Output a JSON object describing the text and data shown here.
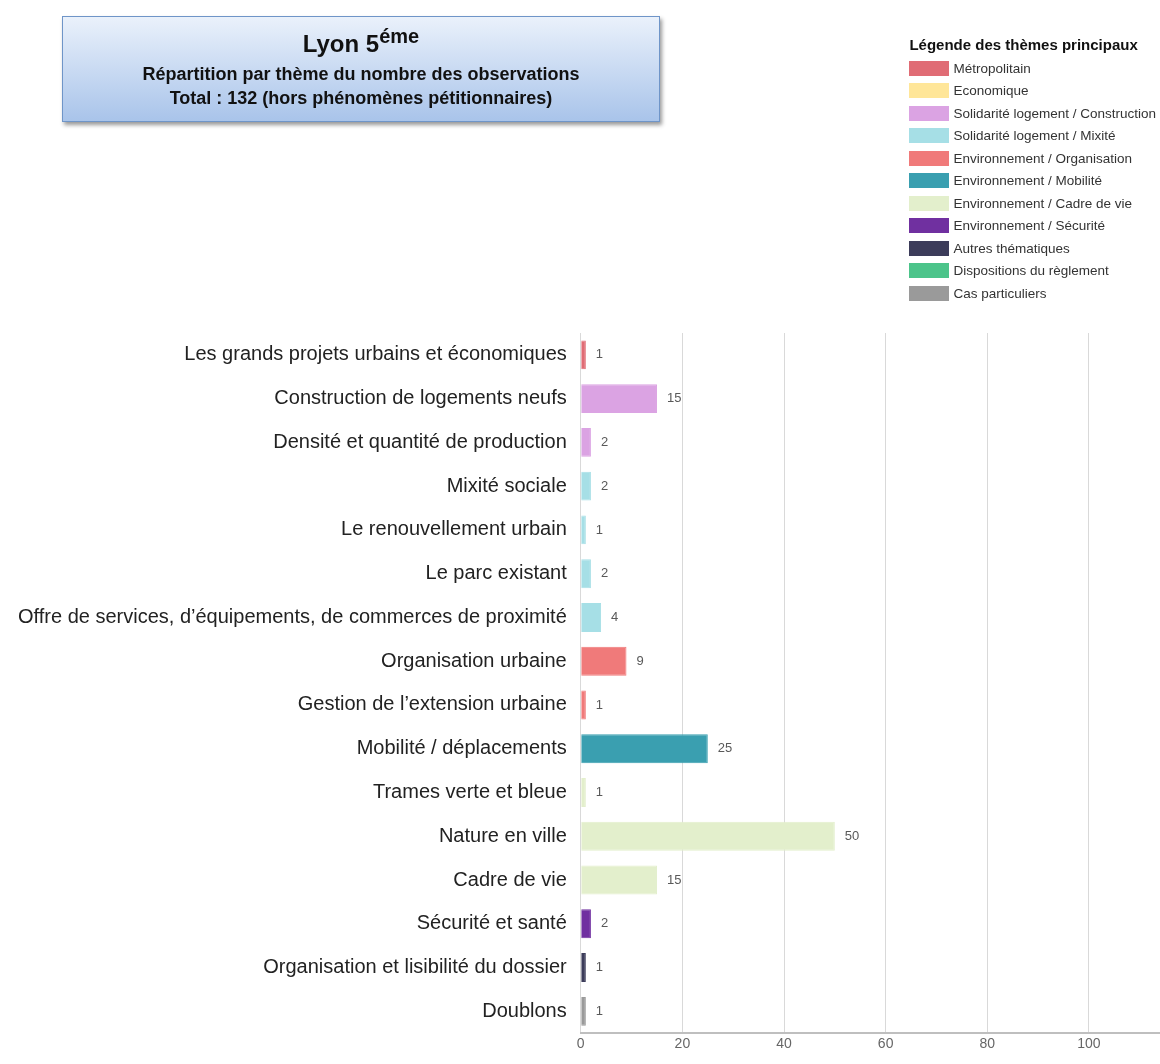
{
  "chart_data": {
    "type": "bar",
    "orientation": "horizontal",
    "stacked": true,
    "title": "Lyon 5$^{éme}$",
    "subtitle": "Répartition par thème du nombre des observations\nTotal : 132 (hors phénomènes pétitionnaires)",
    "legend_title": "Légende des thèmes principaux",
    "categories": [
      "Les grands projets urbains et économiques",
      "Construction de logements neufs",
      "Densité et quantité de production",
      "Mixité sociale",
      "Le renouvellement urbain",
      "Le parc existant",
      "Offre de services, d’équipements, de commerces de proximité",
      "Organisation urbaine",
      "Gestion de l’extension urbaine",
      "Mobilité / déplacements",
      "Trames verte et bleue",
      "Nature en ville",
      "Cadre de vie",
      "Sécurité et santé",
      "Organisation et lisibilité du dossier",
      "Doublons"
    ],
    "series": [
      {
        "name": "Métropolitain",
        "color": "#e06c75",
        "values": [
          1,
          null,
          null,
          null,
          null,
          null,
          null,
          null,
          null,
          null,
          null,
          null,
          null,
          null,
          null,
          null
        ]
      },
      {
        "name": "Economique",
        "color": "#ffe699",
        "values": [
          null,
          null,
          null,
          null,
          null,
          null,
          null,
          null,
          null,
          null,
          null,
          null,
          null,
          null,
          null,
          null
        ]
      },
      {
        "name": "Solidarité logement / Construction",
        "color": "#dba3e3",
        "values": [
          null,
          15,
          2,
          null,
          null,
          null,
          null,
          null,
          null,
          null,
          null,
          null,
          null,
          null,
          null,
          null
        ]
      },
      {
        "name": "Solidarité logement / Mixité",
        "color": "#a6dfe6",
        "values": [
          null,
          null,
          null,
          2,
          1,
          2,
          4,
          null,
          null,
          null,
          null,
          null,
          null,
          null,
          null,
          null
        ]
      },
      {
        "name": "Environnement / Organisation",
        "color": "#f07a7a",
        "values": [
          null,
          null,
          null,
          null,
          null,
          null,
          null,
          9,
          1,
          null,
          null,
          null,
          null,
          null,
          null,
          null
        ]
      },
      {
        "name": "Environnement / Mobilité",
        "color": "#3a9fb0",
        "values": [
          null,
          null,
          null,
          null,
          null,
          null,
          null,
          null,
          null,
          25,
          null,
          null,
          null,
          null,
          null,
          null
        ]
      },
      {
        "name": "Environnement / Cadre de vie",
        "color": "#e3efcc",
        "values": [
          null,
          null,
          null,
          null,
          null,
          null,
          null,
          null,
          null,
          null,
          1,
          50,
          15,
          null,
          null,
          null
        ]
      },
      {
        "name": "Environnement / Sécurité",
        "color": "#7030a0",
        "values": [
          null,
          null,
          null,
          null,
          null,
          null,
          null,
          null,
          null,
          null,
          null,
          null,
          null,
          2,
          null,
          null
        ]
      },
      {
        "name": "Autres thématiques",
        "color": "#3c3c5a",
        "values": [
          null,
          null,
          null,
          null,
          null,
          null,
          null,
          null,
          null,
          null,
          null,
          null,
          null,
          null,
          1,
          null
        ]
      },
      {
        "name": "Dispositions du règlement",
        "color": "#4cc48a",
        "values": [
          null,
          null,
          null,
          null,
          null,
          null,
          null,
          null,
          null,
          null,
          null,
          null,
          null,
          null,
          null,
          null
        ]
      },
      {
        "name": "Cas particuliers",
        "color": "#9a9a9a",
        "values": [
          null,
          null,
          null,
          null,
          null,
          null,
          null,
          null,
          null,
          null,
          null,
          null,
          null,
          null,
          null,
          1
        ]
      }
    ],
    "xlim": [
      0,
      114
    ],
    "xticks": [
      0,
      20,
      40,
      60,
      80,
      100
    ],
    "grid": "x",
    "legend": "top right",
    "data_labels": true
  }
}
